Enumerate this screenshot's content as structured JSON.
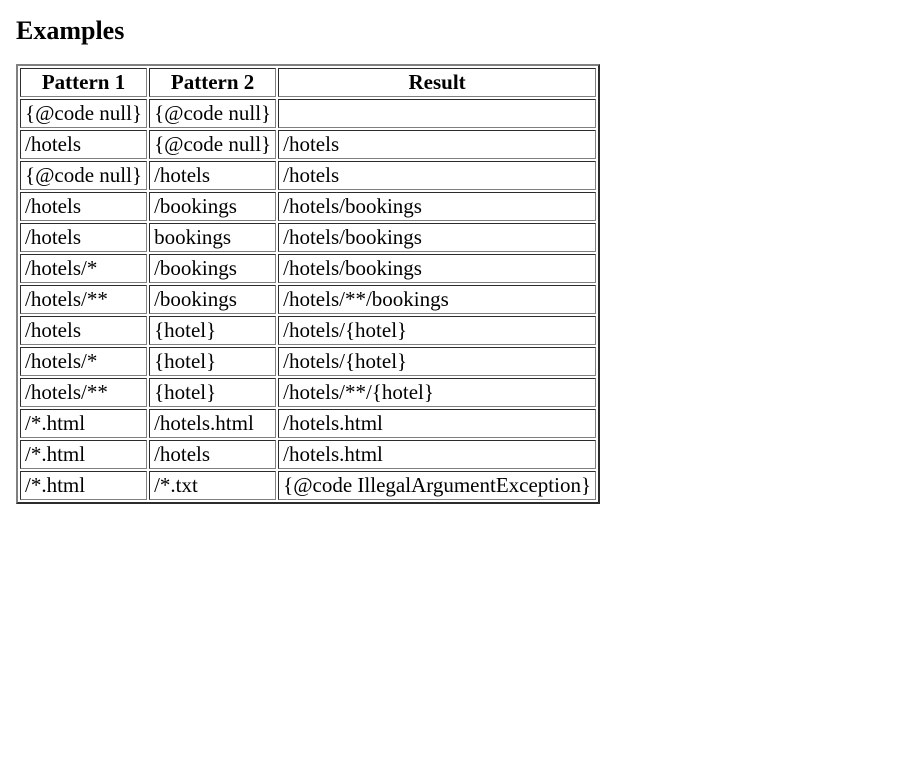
{
  "heading": "Examples",
  "table": {
    "columns": [
      "Pattern 1",
      "Pattern 2",
      "Result"
    ],
    "rows": [
      [
        "{@code null}",
        "{@code null}",
        ""
      ],
      [
        "/hotels",
        "{@code null}",
        "/hotels"
      ],
      [
        "{@code null}",
        "/hotels",
        "/hotels"
      ],
      [
        "/hotels",
        "/bookings",
        "/hotels/bookings"
      ],
      [
        "/hotels",
        "bookings",
        "/hotels/bookings"
      ],
      [
        "/hotels/*",
        "/bookings",
        "/hotels/bookings"
      ],
      [
        "/hotels/**",
        "/bookings",
        "/hotels/**/bookings"
      ],
      [
        "/hotels",
        "{hotel}",
        "/hotels/{hotel}"
      ],
      [
        "/hotels/*",
        "{hotel}",
        "/hotels/{hotel}"
      ],
      [
        "/hotels/**",
        "{hotel}",
        "/hotels/**/{hotel}"
      ],
      [
        "/*.html",
        "/hotels.html",
        "/hotels.html"
      ],
      [
        "/*.html",
        "/hotels",
        "/hotels.html"
      ],
      [
        "/*.html",
        "/*.txt",
        "{@code IllegalArgumentException}"
      ]
    ]
  },
  "style": {
    "background_color": "#ffffff",
    "text_color": "#000000",
    "font_family": "Times New Roman",
    "heading_fontsize": 26,
    "body_fontsize": 21,
    "table_border_color": "#808080"
  }
}
